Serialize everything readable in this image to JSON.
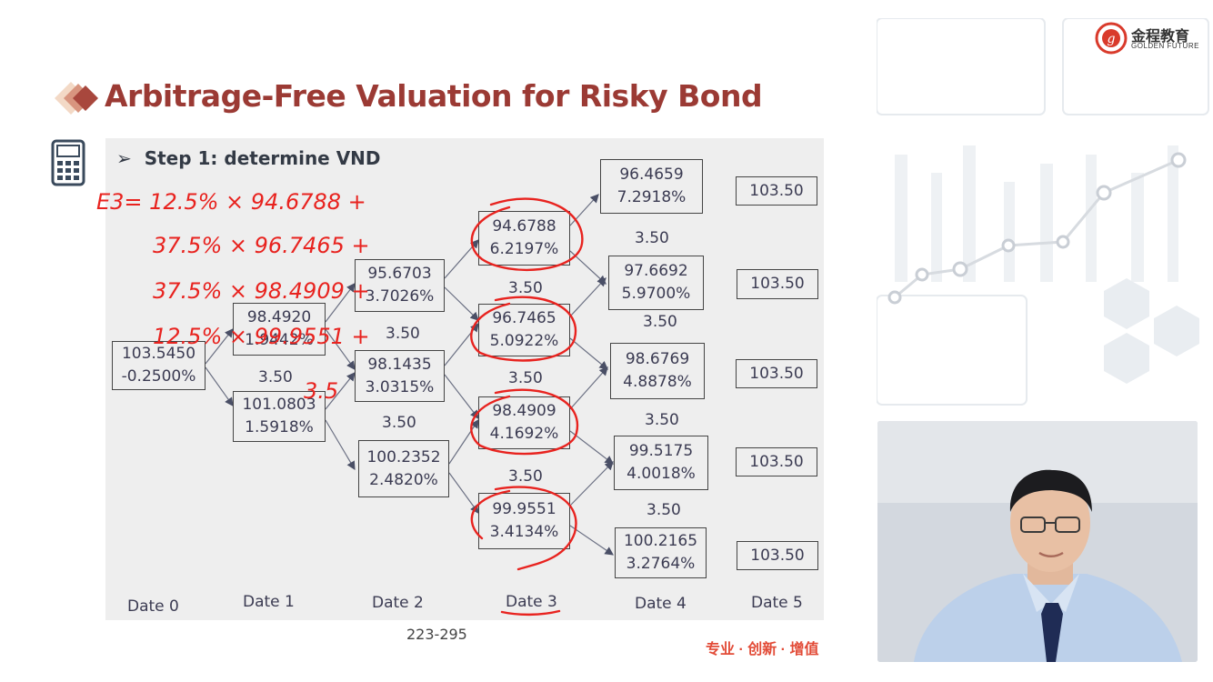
{
  "slide": {
    "title": "Arbitrage-Free Valuation for Risky Bond",
    "step": "Step 1: determine VND",
    "page_number": "223-295",
    "slogan": "专业 · 创新 · 增值"
  },
  "logo": {
    "name": "金程教育",
    "sub": "GOLDEN FUTURE"
  },
  "tree": {
    "dates": [
      "Date 0",
      "Date 1",
      "Date 2",
      "Date 3",
      "Date 4",
      "Date 5"
    ],
    "coupon": "3.50",
    "date0": [
      {
        "value": "103.5450",
        "rate": "-0.2500%"
      }
    ],
    "date1": [
      {
        "value": "98.4920",
        "rate": "1.9442%"
      },
      {
        "value": "101.0803",
        "rate": "1.5918%"
      }
    ],
    "date2": [
      {
        "value": "95.6703",
        "rate": "3.7026%"
      },
      {
        "value": "98.1435",
        "rate": "3.0315%"
      },
      {
        "value": "100.2352",
        "rate": "2.4820%"
      }
    ],
    "date3": [
      {
        "value": "94.6788",
        "rate": "6.2197%"
      },
      {
        "value": "96.7465",
        "rate": "5.0922%"
      },
      {
        "value": "98.4909",
        "rate": "4.1692%"
      },
      {
        "value": "99.9551",
        "rate": "3.4134%"
      }
    ],
    "date4": [
      {
        "value": "96.4659",
        "rate": "7.2918%"
      },
      {
        "value": "97.6692",
        "rate": "5.9700%"
      },
      {
        "value": "98.6769",
        "rate": "4.8878%"
      },
      {
        "value": "99.5175",
        "rate": "4.0018%"
      },
      {
        "value": "100.2165",
        "rate": "3.2764%"
      }
    ],
    "date5": [
      "103.50",
      "103.50",
      "103.50",
      "103.50",
      "103.50"
    ]
  },
  "handwriting": {
    "line1": "E3= 12.5% × 94.6788 +",
    "line2": "37.5% × 96.7465 +",
    "line3": "37.5% × 98.4909 +",
    "line4": "12.5% × 99.9551 +",
    "line5": "3.5",
    "color": "#e8231f"
  },
  "colors": {
    "title": "#9b3a34",
    "panel": "#eeeeee",
    "accent_red": "#e24b37"
  }
}
